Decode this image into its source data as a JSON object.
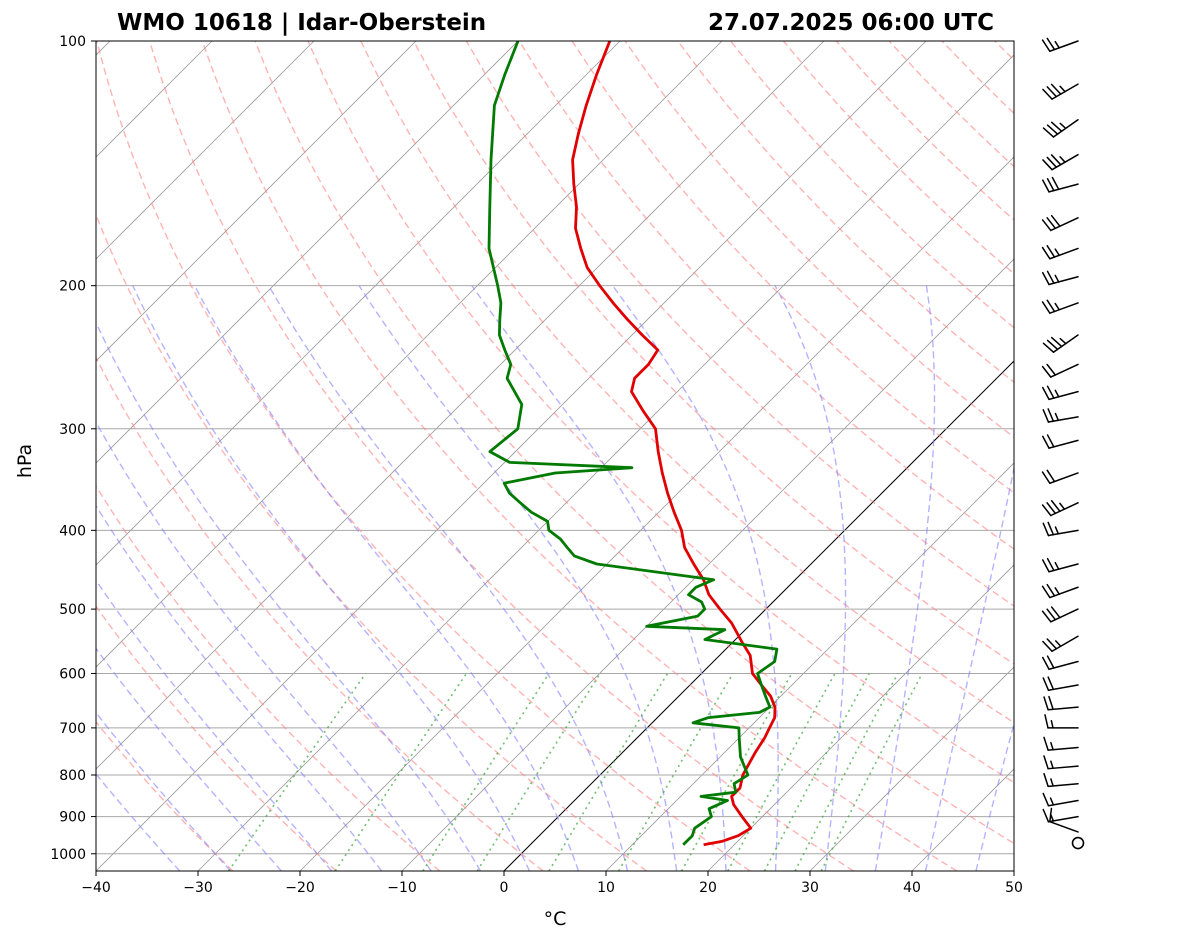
{
  "chart_data": {
    "type": "line",
    "title_left": "WMO 10618 | Idar-Oberstein",
    "title_right": "27.07.2025 06:00 UTC",
    "xlabel": "°C",
    "ylabel": "hPa",
    "xlim": [
      -40,
      50
    ],
    "ylim": [
      1050,
      100
    ],
    "y_scale": "log",
    "skew": true,
    "grid": true,
    "x_ticks": [
      -40,
      -30,
      -20,
      -10,
      0,
      10,
      20,
      30,
      40,
      50
    ],
    "x_tick_labels": [
      "−40",
      "−30",
      "−20",
      "−10",
      "0",
      "10",
      "20",
      "30",
      "40",
      "50"
    ],
    "y_ticks": [
      100,
      200,
      300,
      400,
      500,
      600,
      700,
      800,
      900,
      1000
    ],
    "y_tick_labels": [
      "100",
      "200",
      "300",
      "400",
      "500",
      "600",
      "700",
      "800",
      "900",
      "1000"
    ],
    "colors": {
      "temperature": "#e00000",
      "dewpoint": "#007a00",
      "dry_adiabats": "#ff8080",
      "moist_adiabats": "#8080ff",
      "mixing_ratio": "#40a840",
      "isotherms": "#808080",
      "zero_isotherm": "#000000",
      "barbs": "#000000"
    },
    "series": [
      {
        "key": "temperature",
        "p": [
          975,
          965,
          950,
          930,
          900,
          870,
          850,
          830,
          800,
          750,
          720,
          700,
          680,
          660,
          640,
          620,
          600,
          570,
          550,
          520,
          500,
          480,
          460,
          440,
          420,
          400,
          380,
          360,
          340,
          320,
          300,
          285,
          270,
          260,
          250,
          240,
          230,
          220,
          210,
          200,
          190,
          180,
          170,
          160,
          150,
          140,
          130,
          120,
          110,
          100
        ],
        "t": [
          17.0,
          18.5,
          19.5,
          20.0,
          18.0,
          16.0,
          15.0,
          15.0,
          14.0,
          13.0,
          12.5,
          12.0,
          11.5,
          10.5,
          9.0,
          7.0,
          5.0,
          3.0,
          1.0,
          -2.0,
          -4.5,
          -7.0,
          -9.0,
          -11.5,
          -14.0,
          -16.0,
          -18.5,
          -21.0,
          -23.5,
          -26.0,
          -28.5,
          -31.5,
          -34.5,
          -35.5,
          -35.5,
          -36.0,
          -39.0,
          -42.0,
          -45.0,
          -48.0,
          -51.0,
          -53.5,
          -56.0,
          -58.0,
          -60.5,
          -63.0,
          -65.0,
          -67.0,
          -69.0,
          -71.0
        ]
      },
      {
        "key": "dewpoint",
        "p": [
          975,
          950,
          930,
          900,
          880,
          860,
          850,
          840,
          820,
          800,
          760,
          720,
          700,
          690,
          680,
          670,
          660,
          640,
          620,
          600,
          580,
          560,
          545,
          530,
          525,
          510,
          500,
          490,
          480,
          470,
          460,
          440,
          430,
          420,
          410,
          400,
          390,
          380,
          370,
          360,
          350,
          340,
          335,
          330,
          320,
          300,
          280,
          260,
          250,
          240,
          230,
          220,
          210,
          200,
          180,
          160,
          140,
          120,
          110,
          100
        ],
        "t": [
          15.0,
          15.0,
          14.5,
          15.0,
          14.0,
          15.0,
          12.0,
          15.0,
          14.0,
          14.5,
          12.0,
          10.0,
          9.0,
          4.0,
          5.0,
          9.5,
          10.0,
          8.5,
          7.0,
          5.5,
          6.0,
          5.0,
          -3.0,
          -2.0,
          -10.0,
          -6.0,
          -6.0,
          -7.0,
          -9.0,
          -9.0,
          -8.0,
          -21.0,
          -24.0,
          -25.5,
          -27.0,
          -29.0,
          -30.0,
          -32.5,
          -34.5,
          -36.5,
          -38.0,
          -34.0,
          -27.0,
          -39.5,
          -42.5,
          -42.0,
          -44.0,
          -48.0,
          -49.0,
          -51.0,
          -53.0,
          -54.5,
          -56.0,
          -58.0,
          -62.5,
          -66.5,
          -71.0,
          -76.0,
          -78.0,
          -80.0
        ]
      }
    ],
    "wind": {
      "p": [
        970,
        940,
        900,
        860,
        820,
        780,
        740,
        700,
        660,
        620,
        580,
        540,
        500,
        470,
        440,
        400,
        370,
        340,
        310,
        290,
        270,
        250,
        230,
        210,
        195,
        180,
        165,
        150,
        138,
        125,
        113,
        100
      ],
      "dir": [
        0,
        290,
        260,
        260,
        265,
        265,
        265,
        270,
        265,
        260,
        255,
        240,
        245,
        250,
        255,
        260,
        245,
        250,
        255,
        260,
        255,
        245,
        235,
        250,
        255,
        250,
        245,
        255,
        240,
        235,
        240,
        250
      ],
      "kt": [
        0,
        10,
        15,
        15,
        15,
        15,
        15,
        15,
        20,
        20,
        20,
        25,
        30,
        25,
        25,
        25,
        35,
        20,
        20,
        25,
        25,
        20,
        35,
        25,
        25,
        25,
        30,
        30,
        35,
        35,
        35,
        25
      ]
    }
  }
}
